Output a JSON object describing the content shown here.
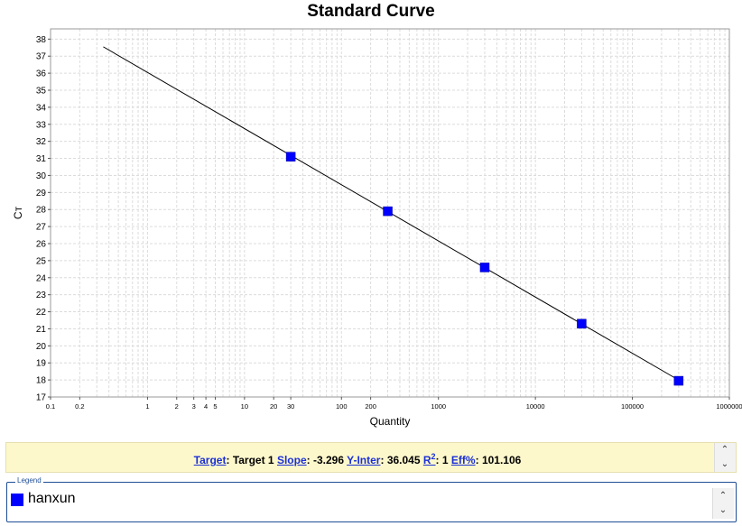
{
  "chart_data": {
    "type": "scatter",
    "title": "Standard Curve",
    "xlabel": "Quantity",
    "ylabel": "Cт",
    "x_scale": "log",
    "xlim": [
      0.1,
      1000000
    ],
    "ylim": [
      17,
      38.6
    ],
    "grid": true,
    "x_tick_values": [
      0.1,
      0.2,
      1,
      2,
      3,
      4,
      5,
      10,
      20,
      30,
      100,
      200,
      1000,
      10000,
      100000,
      1000000
    ],
    "x_tick_labels": [
      "0.1",
      "0.2",
      "1",
      "2",
      "3",
      "4",
      "5",
      "10",
      "20",
      "30",
      "100",
      "200",
      "1000",
      "10000",
      "100000",
      "1000000"
    ],
    "y_ticks": [
      17,
      18,
      19,
      20,
      21,
      22,
      23,
      24,
      25,
      26,
      27,
      28,
      29,
      30,
      31,
      32,
      33,
      34,
      35,
      36,
      37,
      38
    ],
    "series": [
      {
        "name": "hanxun",
        "color": "#0000ff",
        "marker": "square",
        "x": [
          30,
          300,
          3000,
          30000,
          300000
        ],
        "y": [
          31.1,
          27.9,
          24.6,
          21.3,
          17.95
        ]
      }
    ],
    "fit_line": {
      "color": "#000000",
      "slope": -3.296,
      "intercept": 36.045,
      "x_range": [
        0.35,
        300000
      ]
    }
  },
  "stats": {
    "target_label": "Target",
    "target_value": "Target 1",
    "slope_label": "Slope",
    "slope_value": "-3.296",
    "yinter_label": "Y-Inter",
    "yinter_value": "36.045",
    "r2_label": "R",
    "r2_sup": "2",
    "r2_value": "1",
    "eff_label": "Eff%",
    "eff_value": "101.106"
  },
  "legend": {
    "title": "Legend",
    "items": [
      {
        "label": "hanxun",
        "color": "#0000ff"
      }
    ]
  },
  "icons": {
    "up": "chevron-up-icon",
    "down": "chevron-down-icon"
  }
}
